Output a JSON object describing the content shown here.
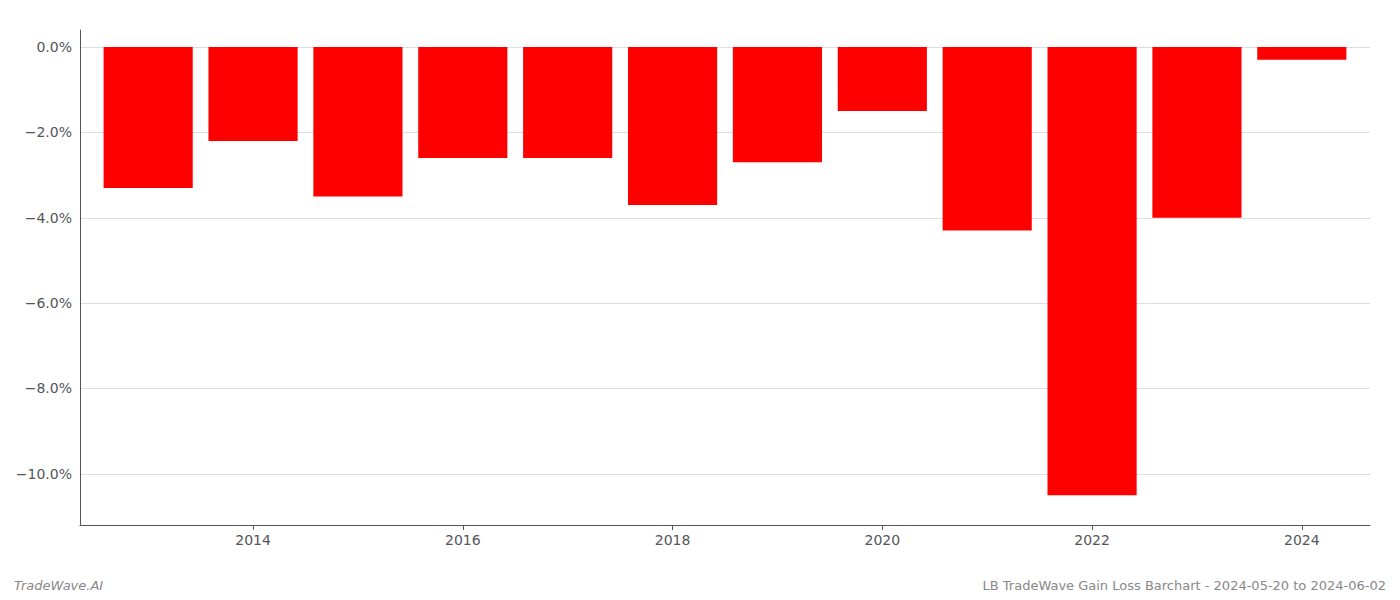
{
  "chart_data": {
    "type": "bar",
    "x": [
      2013,
      2014,
      2015,
      2016,
      2017,
      2018,
      2019,
      2020,
      2021,
      2022,
      2023,
      2024
    ],
    "values": [
      -3.3,
      -2.2,
      -3.5,
      -2.6,
      -2.6,
      -3.7,
      -2.7,
      -1.5,
      -4.3,
      -10.5,
      -4.0,
      -0.3
    ],
    "color": "#ff0000",
    "xlim": [
      2012.35,
      2024.65
    ],
    "xticks": [
      2014,
      2016,
      2018,
      2020,
      2022,
      2024
    ],
    "ylim": [
      -11.2,
      0.4
    ],
    "yticks": [
      {
        "value": 0.0,
        "label": "0.0%"
      },
      {
        "value": -2.0,
        "label": "−2.0%"
      },
      {
        "value": -4.0,
        "label": "−4.0%"
      },
      {
        "value": -6.0,
        "label": "−6.0%"
      },
      {
        "value": -8.0,
        "label": "−8.0%"
      },
      {
        "value": -10.0,
        "label": "−10.0%"
      }
    ],
    "grid": true,
    "annotations": [
      "TradeWave.AI",
      "LB TradeWave Gain Loss Barchart - 2024-05-20 to 2024-06-02"
    ]
  }
}
